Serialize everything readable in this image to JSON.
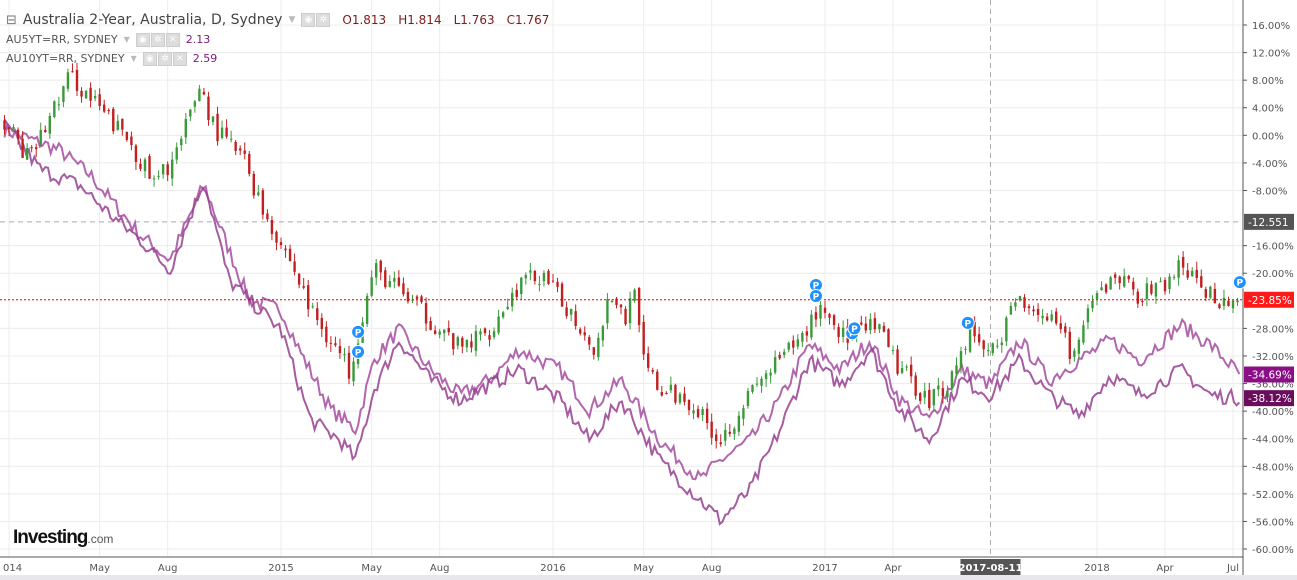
{
  "legend": {
    "main": {
      "title": "Australia 2-Year, Australia, D, Sydney",
      "open": "O1.813",
      "high": "H1.814",
      "low": "L1.763",
      "close": "C1.767"
    },
    "series": [
      {
        "label": "AU5YT=RR, SYDNEY",
        "value": "2.13"
      },
      {
        "label": "AU10YT=RR, SYDNEY",
        "value": "2.59"
      }
    ]
  },
  "logo": {
    "main": "Investing",
    "suffix": ".com"
  },
  "chart_data": {
    "type": "line",
    "title": "Australia 2-Year, Australia, D, Sydney",
    "xunit": "months since Jan 2014",
    "xlim": [
      -0.3,
      55
    ],
    "ylim": [
      -62,
      18
    ],
    "grid": true,
    "x_ticks": [
      {
        "m": 0,
        "label": "014"
      },
      {
        "m": 4,
        "label": "May"
      },
      {
        "m": 7,
        "label": "Aug"
      },
      {
        "m": 12,
        "label": "2015"
      },
      {
        "m": 16,
        "label": "May"
      },
      {
        "m": 19,
        "label": "Aug"
      },
      {
        "m": 24,
        "label": "2016"
      },
      {
        "m": 28,
        "label": "May"
      },
      {
        "m": 31,
        "label": "Aug"
      },
      {
        "m": 36,
        "label": "2017"
      },
      {
        "m": 39,
        "label": "Apr"
      },
      {
        "m": 48,
        "label": "2018"
      },
      {
        "m": 51,
        "label": "Apr"
      },
      {
        "m": 54,
        "label": "Jul"
      }
    ],
    "y_ticks": [
      16,
      12,
      8,
      4,
      0,
      -4,
      -8,
      -16,
      -20,
      -28,
      -32,
      -36,
      -40,
      -44,
      -48,
      -52,
      -56,
      -60
    ],
    "crosshair": {
      "x_m": 43.3,
      "x_label": "2017-08-11",
      "y_value": -12.551,
      "y_label": "-12.551"
    },
    "series": [
      {
        "name": "Australia 2-Year",
        "style": "candles",
        "last_label": "-23.85%",
        "color": "#ff0000",
        "points": [
          [
            -0.2,
            2.2
          ],
          [
            0.9,
            -3.6
          ],
          [
            2.7,
            8.7
          ],
          [
            4,
            3.7
          ],
          [
            5.3,
            -0.7
          ],
          [
            6.4,
            -7.2
          ],
          [
            7.5,
            -2.1
          ],
          [
            8.4,
            7.3
          ],
          [
            9.1,
            0.8
          ],
          [
            10.4,
            -3.6
          ],
          [
            11.1,
            -10.1
          ],
          [
            12.4,
            -18.1
          ],
          [
            13.3,
            -25.3
          ],
          [
            14.2,
            -29.7
          ],
          [
            15,
            -34
          ],
          [
            16.1,
            -19.5
          ],
          [
            17.2,
            -22.4
          ],
          [
            18.6,
            -26.8
          ],
          [
            19.9,
            -31.1
          ],
          [
            21.2,
            -28.2
          ],
          [
            22.5,
            -21.7
          ],
          [
            23.4,
            -20.3
          ],
          [
            24.7,
            -25.3
          ],
          [
            25.9,
            -31.1
          ],
          [
            26.5,
            -22.4
          ],
          [
            27.2,
            -26.8
          ],
          [
            27.6,
            -21
          ],
          [
            27.9,
            -32.6
          ],
          [
            28.7,
            -37
          ],
          [
            30,
            -38.4
          ],
          [
            31.4,
            -44.2
          ],
          [
            32.5,
            -38.4
          ],
          [
            33.6,
            -34
          ],
          [
            34.9,
            -29.7
          ],
          [
            35.8,
            -24.6
          ],
          [
            37,
            -29.7
          ],
          [
            38.2,
            -27.5
          ],
          [
            39.3,
            -34
          ],
          [
            40.6,
            -38.4
          ],
          [
            41.5,
            -35.5
          ],
          [
            42.4,
            -28.2
          ],
          [
            43.3,
            -31.9
          ],
          [
            44.6,
            -23.2
          ],
          [
            45.9,
            -26.8
          ],
          [
            47,
            -31.9
          ],
          [
            47.9,
            -23.9
          ],
          [
            48.8,
            -20.3
          ],
          [
            49.9,
            -23.2
          ],
          [
            51,
            -21.7
          ],
          [
            51.7,
            -18.8
          ],
          [
            52.6,
            -22.4
          ],
          [
            53.6,
            -23.9
          ],
          [
            54.3,
            -23.85
          ]
        ]
      },
      {
        "name": "AU5YT=RR",
        "style": "line",
        "last_label": "-34.69%",
        "color": "#8e1f8a",
        "points": [
          [
            -0.2,
            0.8
          ],
          [
            2.2,
            -2.1
          ],
          [
            3.6,
            -5.8
          ],
          [
            4.5,
            -9.4
          ],
          [
            5.8,
            -14.5
          ],
          [
            7.1,
            -18.1
          ],
          [
            8.6,
            -7.2
          ],
          [
            9.7,
            -16.6
          ],
          [
            10.6,
            -23.9
          ],
          [
            12,
            -25.3
          ],
          [
            12.8,
            -31.1
          ],
          [
            14.2,
            -39.8
          ],
          [
            15.3,
            -42.7
          ],
          [
            16.1,
            -32.6
          ],
          [
            17.2,
            -28.2
          ],
          [
            18.6,
            -34
          ],
          [
            19.9,
            -37.7
          ],
          [
            21.2,
            -35.5
          ],
          [
            22.5,
            -31.1
          ],
          [
            24.3,
            -34
          ],
          [
            25.6,
            -39.8
          ],
          [
            27,
            -35.5
          ],
          [
            28.7,
            -44.2
          ],
          [
            30.5,
            -50
          ],
          [
            31.4,
            -47.1
          ],
          [
            32.7,
            -44.2
          ],
          [
            34,
            -38.4
          ],
          [
            35.3,
            -30.4
          ],
          [
            36.7,
            -34
          ],
          [
            38,
            -29.7
          ],
          [
            39.3,
            -38.4
          ],
          [
            40.6,
            -41.3
          ],
          [
            42,
            -34
          ],
          [
            43.3,
            -36.2
          ],
          [
            44.6,
            -29.7
          ],
          [
            45.9,
            -35.5
          ],
          [
            47.2,
            -32.6
          ],
          [
            48.6,
            -29.7
          ],
          [
            49.9,
            -32.6
          ],
          [
            51.7,
            -27.5
          ],
          [
            53,
            -30.4
          ],
          [
            54.3,
            -34.69
          ]
        ]
      },
      {
        "name": "AU10YT=RR",
        "style": "line",
        "last_label": "-38.12%",
        "color": "#6b0f5e",
        "points": [
          [
            -0.2,
            1.5
          ],
          [
            1.4,
            -5
          ],
          [
            3.1,
            -7.2
          ],
          [
            4.5,
            -11.6
          ],
          [
            5.8,
            -15.2
          ],
          [
            7.1,
            -19.5
          ],
          [
            8.6,
            -6.5
          ],
          [
            9.7,
            -21
          ],
          [
            10.6,
            -23.9
          ],
          [
            12,
            -28.2
          ],
          [
            13.3,
            -41.3
          ],
          [
            14.6,
            -44.2
          ],
          [
            15.3,
            -47.1
          ],
          [
            16.1,
            -36.9
          ],
          [
            17.2,
            -29.7
          ],
          [
            18.6,
            -35.5
          ],
          [
            19.9,
            -38.4
          ],
          [
            21.2,
            -36.2
          ],
          [
            22.5,
            -34
          ],
          [
            24.3,
            -38.4
          ],
          [
            25.6,
            -44.2
          ],
          [
            27,
            -38.4
          ],
          [
            28.7,
            -47.1
          ],
          [
            30.5,
            -52.9
          ],
          [
            31.4,
            -55.8
          ],
          [
            32.7,
            -51.4
          ],
          [
            34,
            -42.8
          ],
          [
            35.3,
            -32.6
          ],
          [
            36.7,
            -36.2
          ],
          [
            38,
            -31.1
          ],
          [
            39.3,
            -39.8
          ],
          [
            40.6,
            -44.2
          ],
          [
            42,
            -35.5
          ],
          [
            43.3,
            -37.7
          ],
          [
            44.6,
            -32.6
          ],
          [
            45.9,
            -37.7
          ],
          [
            47.2,
            -40.6
          ],
          [
            48.6,
            -34.8
          ],
          [
            49.9,
            -37.7
          ],
          [
            51.7,
            -34
          ],
          [
            53,
            -37.7
          ],
          [
            54.3,
            -38.12
          ]
        ]
      }
    ],
    "markers": {
      "label": "P",
      "points": [
        [
          15.4,
          -28.5
        ],
        [
          15.4,
          -31.4
        ],
        [
          35.6,
          -21.7
        ],
        [
          35.6,
          -23.3
        ],
        [
          37.2,
          -28.7
        ],
        [
          37.3,
          -28
        ],
        [
          42.3,
          -27.2
        ],
        [
          54.3,
          -21.3
        ]
      ]
    }
  }
}
